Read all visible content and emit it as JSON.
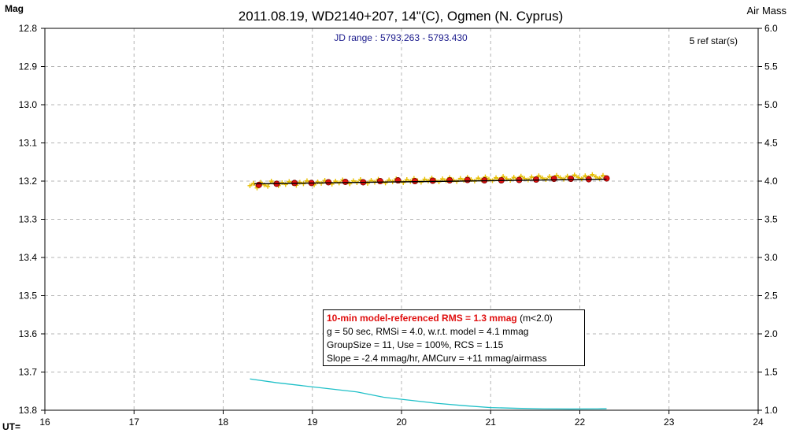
{
  "chart_data": {
    "type": "scatter",
    "title": "2011.08.19, WD2140+207, 14\"(C), Ogmen (N. Cyprus)",
    "ylabel": "Mag",
    "y2label": "Air Mass",
    "xlabel": "UT=",
    "jd_range": "JD range : 5793.263 - 5793.430",
    "ref_stars": "5 ref star(s)",
    "xlim": [
      16,
      24
    ],
    "ylim": [
      12.8,
      13.8
    ],
    "y2lim": [
      1.0,
      6.0
    ],
    "y_inverted": true,
    "grid": true,
    "x_ticks": [
      "16",
      "17",
      "18",
      "19",
      "20",
      "21",
      "22",
      "23",
      "24"
    ],
    "y_ticks": [
      "12.8",
      "12.9",
      "13.0",
      "13.1",
      "13.2",
      "13.3",
      "13.4",
      "13.5",
      "13.6",
      "13.7",
      "13.8"
    ],
    "y2_ticks": [
      "6.0",
      "5.5",
      "5.0",
      "4.5",
      "4.0",
      "3.5",
      "3.0",
      "2.5",
      "2.0",
      "1.5",
      "1.0"
    ],
    "series": [
      {
        "kind": "individual",
        "color": "#e8c000",
        "x": [
          18.3,
          18.34,
          18.38,
          18.42,
          18.46,
          18.5,
          18.54,
          18.58,
          18.62,
          18.66,
          18.7,
          18.74,
          18.78,
          18.82,
          18.86,
          18.9,
          18.94,
          18.98,
          19.02,
          19.06,
          19.1,
          19.14,
          19.18,
          19.22,
          19.26,
          19.3,
          19.34,
          19.38,
          19.42,
          19.46,
          19.5,
          19.54,
          19.58,
          19.62,
          19.66,
          19.7,
          19.74,
          19.78,
          19.82,
          19.86,
          19.9,
          19.94,
          19.98,
          20.02,
          20.06,
          20.1,
          20.14,
          20.18,
          20.22,
          20.26,
          20.3,
          20.34,
          20.38,
          20.42,
          20.46,
          20.5,
          20.54,
          20.58,
          20.62,
          20.66,
          20.7,
          20.74,
          20.78,
          20.82,
          20.86,
          20.9,
          20.94,
          20.98,
          21.02,
          21.06,
          21.1,
          21.14,
          21.18,
          21.22,
          21.26,
          21.3,
          21.34,
          21.38,
          21.42,
          21.46,
          21.5,
          21.54,
          21.58,
          21.62,
          21.66,
          21.7,
          21.74,
          21.78,
          21.82,
          21.86,
          21.9,
          21.94,
          21.98,
          22.02,
          22.06,
          22.1,
          22.14,
          22.18,
          22.22,
          22.26
        ],
        "y": [
          13.212,
          13.206,
          13.218,
          13.203,
          13.21,
          13.214,
          13.2,
          13.207,
          13.212,
          13.204,
          13.209,
          13.201,
          13.206,
          13.211,
          13.203,
          13.207,
          13.199,
          13.205,
          13.21,
          13.202,
          13.206,
          13.198,
          13.204,
          13.208,
          13.2,
          13.205,
          13.197,
          13.203,
          13.207,
          13.199,
          13.204,
          13.196,
          13.202,
          13.206,
          13.198,
          13.203,
          13.195,
          13.201,
          13.205,
          13.197,
          13.202,
          13.194,
          13.2,
          13.204,
          13.196,
          13.201,
          13.193,
          13.199,
          13.203,
          13.195,
          13.2,
          13.192,
          13.198,
          13.202,
          13.194,
          13.199,
          13.191,
          13.197,
          13.201,
          13.193,
          13.198,
          13.19,
          13.196,
          13.2,
          13.192,
          13.197,
          13.189,
          13.195,
          13.199,
          13.191,
          13.196,
          13.188,
          13.194,
          13.198,
          13.19,
          13.195,
          13.187,
          13.193,
          13.197,
          13.189,
          13.194,
          13.186,
          13.192,
          13.196,
          13.188,
          13.193,
          13.185,
          13.191,
          13.195,
          13.187,
          13.192,
          13.184,
          13.19,
          13.194,
          13.186,
          13.191,
          13.183,
          13.189,
          13.193,
          13.185
        ]
      },
      {
        "kind": "binned",
        "color": "#e01010",
        "x": [
          18.4,
          18.6,
          18.8,
          18.99,
          19.18,
          19.37,
          19.57,
          19.76,
          19.96,
          20.15,
          20.35,
          20.54,
          20.74,
          20.93,
          21.12,
          21.32,
          21.51,
          21.71,
          21.9,
          22.1,
          22.3
        ],
        "y": [
          13.21,
          13.207,
          13.205,
          13.205,
          13.203,
          13.202,
          13.203,
          13.2,
          13.198,
          13.2,
          13.199,
          13.198,
          13.197,
          13.198,
          13.198,
          13.197,
          13.196,
          13.194,
          13.194,
          13.195,
          13.193
        ]
      },
      {
        "kind": "model",
        "color": "#000000",
        "x": [
          18.35,
          22.3
        ],
        "y": [
          13.207,
          13.195
        ]
      },
      {
        "kind": "airmass",
        "axis": "y2",
        "color": "#20c0c8",
        "x": [
          18.3,
          18.6,
          18.9,
          19.2,
          19.5,
          19.8,
          20.1,
          20.4,
          20.7,
          21.0,
          21.3,
          21.6,
          21.9,
          22.2,
          22.3
        ],
        "y": [
          1.41,
          1.36,
          1.32,
          1.28,
          1.24,
          1.17,
          1.13,
          1.09,
          1.06,
          1.035,
          1.025,
          1.018,
          1.016,
          1.018,
          1.02
        ]
      }
    ]
  },
  "info_box": {
    "rms_main": "10-min model-referenced RMS = 1.3 mmag",
    "rms_cond": "(m<2.0)",
    "line2": "g = 50 sec, RMSi = 4.0, w.r.t. model = 4.1 mmag",
    "line3": "GroupSize = 11, Use = 100%, RCS = 1.15",
    "line4": "Slope = -2.4 mmag/hr, AMCurv = +11 mmag/airmass"
  }
}
